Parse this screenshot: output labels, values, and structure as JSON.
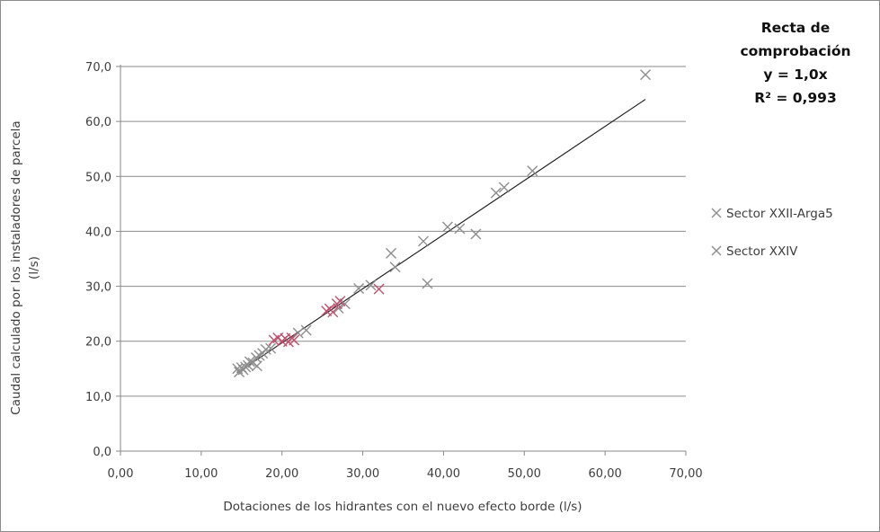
{
  "chart_data": {
    "type": "scatter",
    "title": "",
    "xlabel": "Dotaciones de los hidrantes con el nuevo efecto borde  (l/s)",
    "ylabel_line1": "Caudal calculado por los instaladores de parcela",
    "ylabel_line2": "(l/s)",
    "xlim": [
      0,
      70
    ],
    "ylim": [
      0,
      70
    ],
    "xticks": [
      "0,00",
      "10,00",
      "20,00",
      "30,00",
      "40,00",
      "50,00",
      "60,00",
      "70,00"
    ],
    "yticks": [
      "0,0",
      "10,0",
      "20,0",
      "30,0",
      "40,0",
      "50,0",
      "60,0",
      "70,0"
    ],
    "grid": "horizontal",
    "legend_position": "right",
    "trendline": {
      "label_lines": [
        "Recta de",
        "comprobación",
        "y = 1,0x",
        "R² = 0,993"
      ],
      "slope": 0.985,
      "x_range": [
        14.5,
        65
      ]
    },
    "series": [
      {
        "name": "Sector XXII-Arga5",
        "color": "#8e8e8e",
        "points": [
          [
            14.5,
            15.0
          ],
          [
            14.7,
            14.4
          ],
          [
            15.0,
            15.2
          ],
          [
            15.2,
            14.8
          ],
          [
            15.5,
            15.3
          ],
          [
            15.8,
            15.6
          ],
          [
            16.0,
            16.3
          ],
          [
            16.4,
            16.1
          ],
          [
            16.8,
            17.0
          ],
          [
            16.9,
            15.5
          ],
          [
            17.2,
            17.4
          ],
          [
            17.6,
            17.8
          ],
          [
            18.0,
            18.5
          ],
          [
            18.6,
            18.7
          ],
          [
            22.0,
            21.5
          ],
          [
            23.0,
            22.0
          ],
          [
            27.0,
            26.0
          ],
          [
            27.8,
            26.8
          ],
          [
            29.5,
            29.6
          ],
          [
            31.0,
            30.2
          ],
          [
            33.5,
            36.0
          ],
          [
            34.0,
            33.5
          ],
          [
            37.5,
            38.2
          ],
          [
            38.0,
            30.5
          ],
          [
            40.5,
            40.8
          ],
          [
            42.0,
            40.5
          ],
          [
            44.0,
            39.5
          ],
          [
            46.5,
            47.0
          ],
          [
            47.5,
            48.0
          ],
          [
            51.0,
            51.0
          ],
          [
            65.0,
            68.5
          ]
        ]
      },
      {
        "name": "Sector XXIV",
        "color": "#c0506c",
        "points": [
          [
            19.0,
            20.2
          ],
          [
            19.5,
            20.6
          ],
          [
            20.0,
            20.0
          ],
          [
            20.4,
            20.5
          ],
          [
            20.8,
            19.9
          ],
          [
            21.2,
            20.6
          ],
          [
            21.5,
            20.2
          ],
          [
            25.5,
            25.5
          ],
          [
            25.9,
            25.9
          ],
          [
            26.3,
            25.3
          ],
          [
            26.8,
            26.8
          ],
          [
            27.2,
            27.3
          ],
          [
            32.0,
            29.5
          ]
        ]
      }
    ]
  }
}
